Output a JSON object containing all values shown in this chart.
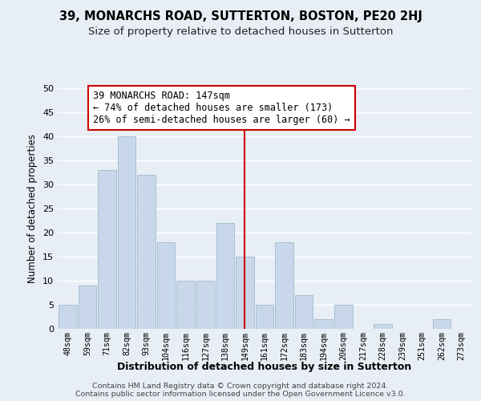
{
  "title": "39, MONARCHS ROAD, SUTTERTON, BOSTON, PE20 2HJ",
  "subtitle": "Size of property relative to detached houses in Sutterton",
  "xlabel": "Distribution of detached houses by size in Sutterton",
  "ylabel": "Number of detached properties",
  "bar_labels": [
    "48sqm",
    "59sqm",
    "71sqm",
    "82sqm",
    "93sqm",
    "104sqm",
    "116sqm",
    "127sqm",
    "138sqm",
    "149sqm",
    "161sqm",
    "172sqm",
    "183sqm",
    "194sqm",
    "206sqm",
    "217sqm",
    "228sqm",
    "239sqm",
    "251sqm",
    "262sqm",
    "273sqm"
  ],
  "bar_values": [
    5,
    9,
    33,
    40,
    32,
    18,
    10,
    10,
    22,
    15,
    5,
    18,
    7,
    2,
    5,
    0,
    1,
    0,
    0,
    2,
    0
  ],
  "bar_color": "#c8d8ea",
  "bar_edge_color": "#a8bfd4",
  "vline_x_index": 9,
  "vline_color": "#cc0000",
  "ylim": [
    0,
    50
  ],
  "yticks": [
    0,
    5,
    10,
    15,
    20,
    25,
    30,
    35,
    40,
    45,
    50
  ],
  "annotation_title": "39 MONARCHS ROAD: 147sqm",
  "annotation_line1": "← 74% of detached houses are smaller (173)",
  "annotation_line2": "26% of semi-detached houses are larger (60) →",
  "annotation_box_color": "#ffffff",
  "annotation_box_edge": "#cc0000",
  "footer1": "Contains HM Land Registry data © Crown copyright and database right 2024.",
  "footer2": "Contains public sector information licensed under the Open Government Licence v3.0.",
  "bg_color": "#e8eef5",
  "grid_color": "#ffffff",
  "title_fontsize": 10.5,
  "subtitle_fontsize": 9.5
}
